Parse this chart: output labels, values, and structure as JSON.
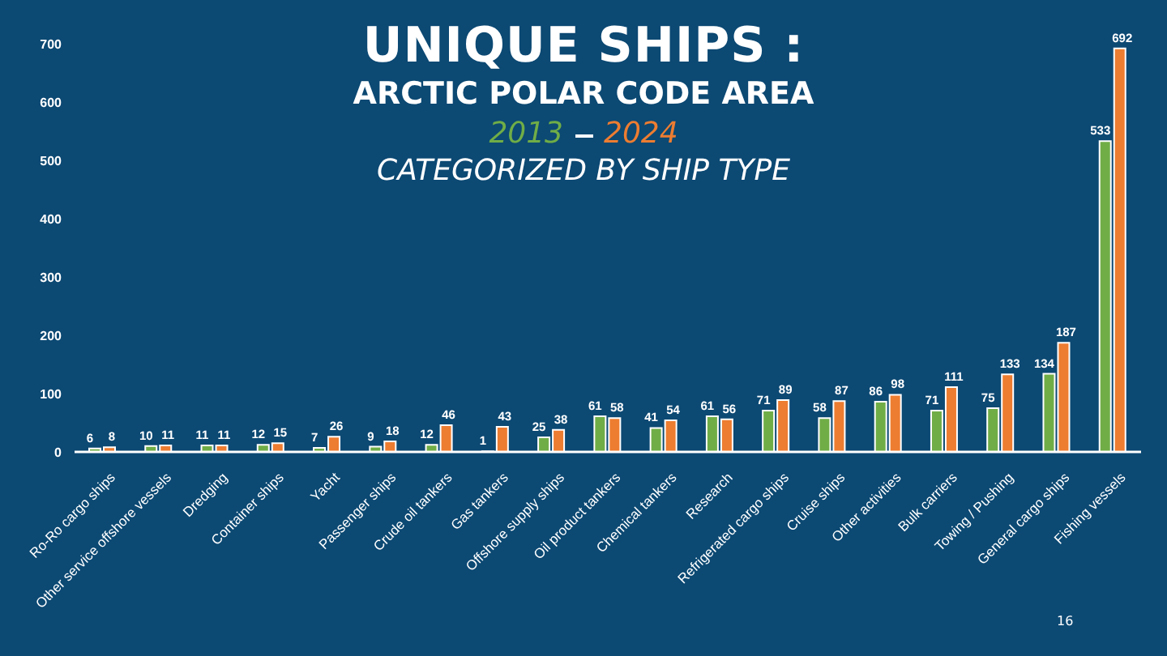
{
  "chart_data": {
    "type": "bar",
    "title": "UNIQUE SHIPS :",
    "subtitle": "ARCTIC POLAR CODE AREA",
    "annotations": [
      "CATEGORIZED BY SHIP TYPE",
      "16"
    ],
    "categories": [
      "Ro-Ro cargo ships",
      "Other service offshore vessels",
      "Dredging",
      "Container ships",
      "Yacht",
      "Passenger ships",
      "Crude oil tankers",
      "Gas tankers",
      "Offshore supply ships",
      "Oil product tankers",
      "Chemical tankers",
      "Research",
      "Refrigerated cargo ships",
      "Cruise ships",
      "Other activities",
      "Bulk carriers",
      "Towing / Pushing",
      "General cargo ships",
      "Fishing vessels"
    ],
    "series": [
      {
        "name": "2013",
        "color": "#70ad47",
        "values": [
          6,
          10,
          11,
          12,
          7,
          9,
          12,
          1,
          25,
          61,
          41,
          61,
          71,
          58,
          86,
          71,
          75,
          134,
          533
        ]
      },
      {
        "name": "2024",
        "color": "#ed7d31",
        "values": [
          8,
          11,
          11,
          15,
          26,
          18,
          46,
          43,
          38,
          58,
          54,
          56,
          89,
          87,
          98,
          111,
          133,
          187,
          692
        ]
      }
    ],
    "ylim": [
      0,
      700
    ],
    "yticks": [
      0,
      100,
      200,
      300,
      400,
      500,
      600,
      700
    ],
    "data_labels": true,
    "legend": "top"
  }
}
